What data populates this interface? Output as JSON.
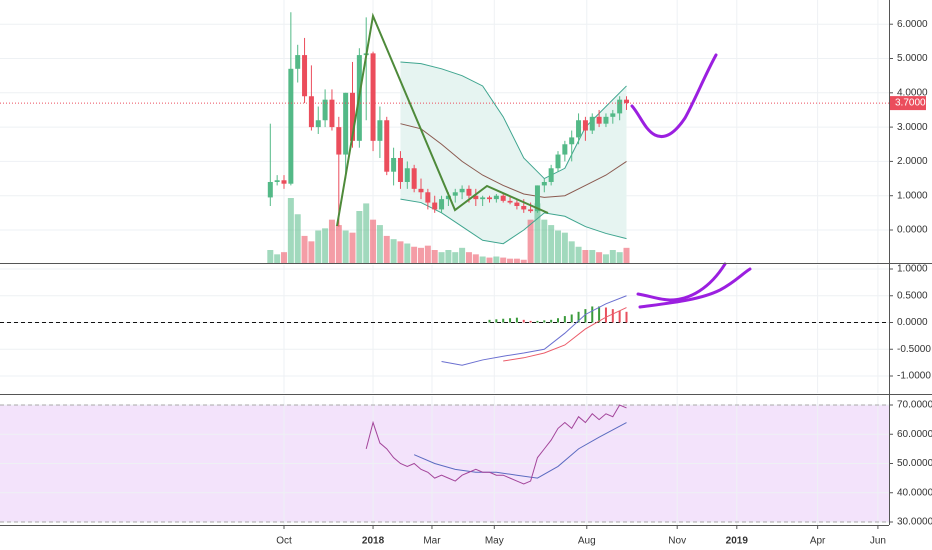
{
  "chart_data": [
    {
      "type": "candlestick",
      "x": [
        -2,
        -1,
        0,
        1,
        2,
        3,
        4,
        5,
        6,
        7,
        8,
        9,
        10,
        11,
        12,
        13,
        14,
        15,
        16,
        17,
        18,
        19,
        20,
        21,
        22,
        23,
        24,
        25,
        26,
        27,
        28,
        29,
        30,
        31,
        32,
        33,
        34,
        35,
        36,
        37,
        38,
        39,
        40,
        41,
        42,
        43,
        44,
        45,
        46,
        47,
        48,
        49,
        50
      ],
      "open": [
        0.95,
        1.4,
        1.45,
        1.35,
        4.7,
        5.1,
        3.9,
        3.0,
        3.2,
        3.8,
        3.0,
        2.2,
        4.0,
        2.6,
        5.1,
        5.15,
        2.6,
        3.2,
        1.7,
        2.1,
        1.4,
        1.8,
        1.2,
        1.1,
        0.8,
        0.6,
        0.9,
        1.0,
        1.1,
        1.2,
        1.0,
        0.9,
        0.95,
        0.9,
        1.0,
        0.85,
        0.8,
        0.7,
        0.6,
        0.55,
        1.3,
        1.4,
        1.8,
        2.2,
        2.5,
        2.7,
        3.2,
        2.9,
        3.3,
        3.1,
        3.3,
        3.4,
        3.8
      ],
      "high": [
        3.1,
        1.6,
        1.6,
        6.35,
        5.4,
        5.6,
        4.8,
        3.6,
        4.1,
        4.1,
        3.3,
        4.0,
        4.9,
        5.3,
        6.2,
        5.2,
        3.6,
        3.3,
        2.4,
        2.3,
        2.0,
        1.9,
        1.5,
        1.2,
        1.0,
        1.0,
        1.1,
        1.2,
        1.3,
        1.3,
        1.2,
        1.0,
        1.0,
        1.05,
        1.05,
        1.0,
        0.9,
        0.9,
        0.8,
        1.3,
        1.5,
        1.9,
        2.3,
        2.6,
        2.9,
        3.4,
        3.3,
        3.4,
        3.5,
        3.4,
        3.5,
        3.9,
        3.9
      ],
      "low": [
        0.7,
        1.3,
        1.2,
        1.3,
        4.3,
        3.7,
        2.9,
        2.8,
        3.0,
        2.9,
        0.1,
        1.5,
        2.4,
        2.4,
        3.2,
        2.3,
        2.1,
        1.6,
        1.3,
        1.2,
        1.2,
        1.1,
        0.9,
        0.6,
        0.5,
        0.5,
        0.7,
        0.8,
        0.9,
        0.8,
        0.7,
        0.7,
        0.8,
        0.8,
        0.8,
        0.75,
        0.6,
        0.5,
        0.5,
        0.5,
        1.1,
        1.3,
        1.7,
        2.0,
        2.0,
        2.5,
        2.6,
        2.8,
        3.0,
        3.0,
        3.1,
        3.2,
        3.5
      ],
      "close": [
        1.4,
        1.45,
        1.35,
        4.7,
        5.1,
        3.9,
        3.0,
        3.2,
        3.8,
        3.0,
        2.2,
        4.0,
        2.6,
        5.1,
        5.15,
        2.6,
        3.2,
        1.7,
        2.1,
        1.4,
        1.8,
        1.2,
        1.1,
        0.8,
        0.6,
        0.9,
        1.0,
        1.1,
        1.2,
        1.0,
        0.9,
        0.95,
        0.9,
        1.0,
        0.85,
        0.8,
        0.7,
        0.6,
        0.55,
        1.3,
        1.4,
        1.8,
        2.2,
        2.5,
        2.7,
        3.2,
        2.9,
        3.3,
        3.1,
        3.3,
        3.4,
        3.8,
        3.7
      ],
      "volume": [
        12,
        8,
        10,
        60,
        45,
        25,
        20,
        30,
        32,
        40,
        35,
        30,
        28,
        48,
        55,
        40,
        35,
        25,
        22,
        20,
        18,
        15,
        14,
        16,
        12,
        10,
        12,
        10,
        14,
        10,
        8,
        6,
        5,
        6,
        5,
        4,
        4,
        3,
        40,
        55,
        40,
        35,
        30,
        28,
        20,
        15,
        12,
        12,
        10,
        8,
        12,
        10,
        14
      ],
      "up_color": "#53b987",
      "down_color": "#eb4d5c",
      "bands": {
        "x": [
          17,
          20,
          23,
          26,
          29,
          32,
          35,
          38,
          41,
          44,
          47,
          50
        ],
        "upper": [
          4.9,
          4.85,
          4.7,
          4.5,
          4.2,
          3.3,
          2.1,
          1.5,
          1.8,
          3.0,
          3.6,
          4.2
        ],
        "middle": [
          3.1,
          2.95,
          2.5,
          2.0,
          1.6,
          1.3,
          1.05,
          0.95,
          1.0,
          1.3,
          1.6,
          2.0
        ],
        "lower": [
          0.9,
          0.8,
          0.5,
          0.1,
          -0.3,
          -0.4,
          0.0,
          0.5,
          0.4,
          0.1,
          -0.1,
          -0.25
        ],
        "color": "#3fa58f",
        "middle_color": "#8b5a50",
        "fill": "#e6f4f1"
      },
      "last_price": {
        "value": 3.7,
        "label": "3.7000"
      },
      "last_price_color": "#eb4d5c",
      "xlim": [
        -41.46,
        88.32
      ],
      "xticks": [
        {
          "value": 0,
          "label": "Oct"
        },
        {
          "value": 13,
          "label": "2018"
        },
        {
          "value": 21.6,
          "label": "Mar"
        },
        {
          "value": 30.7,
          "label": "May"
        },
        {
          "value": 44.2,
          "label": "Aug"
        },
        {
          "value": 57.4,
          "label": "Nov"
        },
        {
          "value": 66.1,
          "label": "2019"
        },
        {
          "value": 77.9,
          "label": "Apr"
        },
        {
          "value": 86.7,
          "label": "Jun"
        }
      ],
      "ylim": [
        -0.962,
        6.706
      ],
      "yticks": [
        {
          "value": 0,
          "label": "0.0000"
        },
        {
          "value": 1,
          "label": "1.0000"
        },
        {
          "value": 2,
          "label": "2.0000"
        },
        {
          "value": 3,
          "label": "3.0000"
        },
        {
          "value": 4,
          "label": "4.0000"
        },
        {
          "value": 5,
          "label": "5.0000"
        },
        {
          "value": 6,
          "label": "6.0000"
        }
      ],
      "grid": true
    },
    {
      "type": "macd",
      "x": [
        23,
        26,
        29,
        32,
        35,
        38,
        41,
        44,
        47,
        50
      ],
      "macd": [
        -0.73,
        -0.8,
        -0.7,
        -0.63,
        -0.57,
        -0.5,
        -0.2,
        0.15,
        0.35,
        0.5
      ],
      "macd_color": "#6a6fd0",
      "signal": [
        null,
        null,
        null,
        -0.72,
        -0.66,
        -0.57,
        -0.42,
        -0.12,
        0.1,
        0.28
      ],
      "signal_color": "#eb5c6a",
      "hist_x": [
        30,
        31,
        32,
        33,
        34,
        35,
        36,
        37,
        38,
        39,
        40,
        41,
        42,
        43,
        44,
        45,
        46,
        47,
        48,
        49,
        50
      ],
      "histogram": [
        0.05,
        0.06,
        0.07,
        0.08,
        0.09,
        0.05,
        0.03,
        0.03,
        0.04,
        0.05,
        0.08,
        0.12,
        0.15,
        0.2,
        0.25,
        0.3,
        0.3,
        0.28,
        0.25,
        0.22,
        0.2
      ],
      "up_color": "#3a9a3a",
      "down_color": "#e8505e",
      "ylim": [
        -1.318,
        1.075
      ],
      "yticks": [
        {
          "value": -1,
          "label": "-1.0000"
        },
        {
          "value": -0.5,
          "label": "-0.5000"
        },
        {
          "value": 0,
          "label": "0.0000"
        },
        {
          "value": 0.5,
          "label": "0.5000"
        },
        {
          "value": 1,
          "label": "1.0000"
        }
      ],
      "zero_line": true
    },
    {
      "type": "line",
      "x": [
        12,
        13,
        14,
        15,
        16,
        17,
        18,
        19,
        20,
        21,
        22,
        23,
        24,
        25,
        26,
        27,
        28,
        29,
        30,
        31,
        32,
        33,
        34,
        35,
        36,
        37,
        38,
        39,
        40,
        41,
        42,
        43,
        44,
        45,
        46,
        47,
        48,
        49,
        50
      ],
      "values": [
        55,
        64,
        57,
        55,
        52,
        50,
        49,
        50,
        48,
        47,
        45,
        46,
        45,
        44,
        46,
        47,
        48,
        47,
        47,
        46,
        46,
        45,
        44,
        43,
        44,
        52,
        55,
        58,
        62,
        64,
        62,
        66,
        64,
        67,
        65,
        67,
        66,
        70,
        69
      ],
      "color": "#a3459a",
      "ma_x": [
        19,
        22,
        25,
        28,
        31,
        34,
        37,
        40,
        43,
        46,
        50
      ],
      "ma": [
        53,
        50,
        48,
        47,
        47,
        46,
        45,
        49,
        55,
        59,
        64
      ],
      "ma_color": "#5b6bc0",
      "band": [
        30,
        70
      ],
      "band_color": "#f3e3fb",
      "ylim": [
        28.97,
        73.08
      ],
      "yticks": [
        {
          "value": 30,
          "label": "30.0000"
        },
        {
          "value": 40,
          "label": "40.0000"
        },
        {
          "value": 50,
          "label": "50.0000"
        },
        {
          "value": 60,
          "label": "60.0000"
        },
        {
          "value": 70,
          "label": "70.0000"
        }
      ]
    }
  ]
}
